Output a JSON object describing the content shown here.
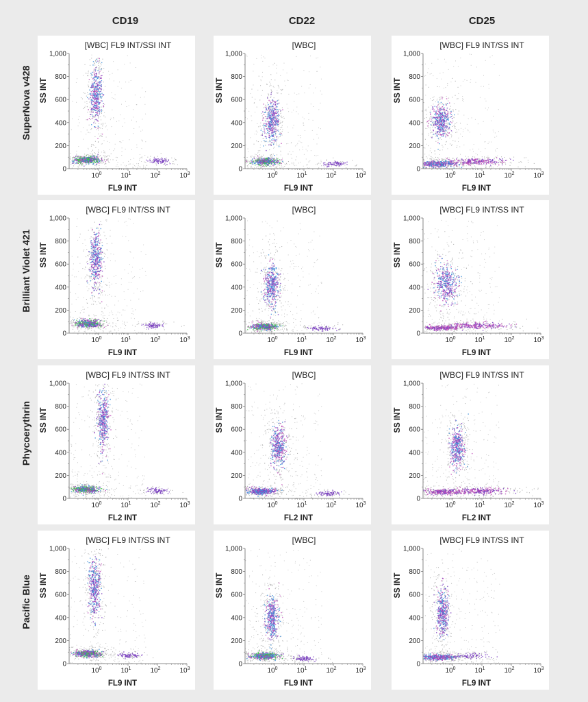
{
  "columns": [
    "CD19",
    "CD22",
    "CD25"
  ],
  "rows": [
    "SuperNova v428",
    "Brilliant Violet 421",
    "Phycoerythrin",
    "Pacific Blue"
  ],
  "colors": {
    "background": "#ebebeb",
    "panel": "#ffffff",
    "low_density": "#9a9a9a",
    "mid_density": "#7a3fc0",
    "high_density_magenta": "#c04bb8",
    "peak_blue": "#3f8fd8",
    "core_green": "#3fbf4a"
  },
  "chart_data": [
    {
      "type": "scatter",
      "row": "SuperNova v428",
      "column": "CD19",
      "title": "[WBC] FL9 INT/SSI INT",
      "xlabel": "FL9 INT",
      "ylabel": "SS INT",
      "x_scale": "log",
      "xlim": [
        0.1,
        1000
      ],
      "ylim": [
        0,
        1000
      ],
      "yticks": [
        "0",
        "200",
        "400",
        "600",
        "800",
        "1,000"
      ],
      "xticks": [
        {
          "base": "10",
          "exp": "0"
        },
        {
          "base": "10",
          "exp": "1"
        },
        {
          "base": "10",
          "exp": "2"
        },
        {
          "base": "10",
          "exp": "3"
        }
      ],
      "populations": [
        {
          "x_center": 0.4,
          "y_center": 80,
          "x_spread_decades": 0.22,
          "y_spread": 14,
          "density": "very-high"
        },
        {
          "x_center": 0.8,
          "y_center": 650,
          "x_spread_decades": 0.1,
          "y_spread": 120,
          "density": "high"
        },
        {
          "x_center": 120,
          "y_center": 70,
          "x_spread_decades": 0.18,
          "y_spread": 12,
          "density": "low"
        }
      ]
    },
    {
      "type": "scatter",
      "row": "SuperNova v428",
      "column": "CD22",
      "title": "[WBC]",
      "xlabel": "FL9 INT",
      "ylabel": "SS INT",
      "x_scale": "log",
      "xlim": [
        0.1,
        1000
      ],
      "ylim": [
        0,
        1000
      ],
      "yticks": [
        "0",
        "200",
        "400",
        "600",
        "800",
        "1,000"
      ],
      "xticks": [
        {
          "base": "10",
          "exp": "0"
        },
        {
          "base": "10",
          "exp": "1"
        },
        {
          "base": "10",
          "exp": "2"
        },
        {
          "base": "10",
          "exp": "3"
        }
      ],
      "populations": [
        {
          "x_center": 0.45,
          "y_center": 65,
          "x_spread_decades": 0.2,
          "y_spread": 13,
          "density": "very-high"
        },
        {
          "x_center": 0.8,
          "y_center": 410,
          "x_spread_decades": 0.12,
          "y_spread": 90,
          "density": "high"
        },
        {
          "x_center": 110,
          "y_center": 45,
          "x_spread_decades": 0.2,
          "y_spread": 10,
          "density": "low"
        }
      ]
    },
    {
      "type": "scatter",
      "row": "SuperNova v428",
      "column": "CD25",
      "title": "[WBC] FL9 INT/SS INT",
      "xlabel": "FL9 INT",
      "ylabel": "SS INT",
      "x_scale": "log",
      "xlim": [
        0.1,
        1000
      ],
      "ylim": [
        0,
        1000
      ],
      "yticks": [
        "0",
        "200",
        "400",
        "600",
        "800",
        "1,000"
      ],
      "xticks": [
        {
          "base": "10",
          "exp": "0"
        },
        {
          "base": "10",
          "exp": "1"
        },
        {
          "base": "10",
          "exp": "2"
        },
        {
          "base": "10",
          "exp": "3"
        }
      ],
      "populations": [
        {
          "x_center": 0.3,
          "y_center": 45,
          "x_spread_decades": 0.35,
          "y_spread": 12,
          "density": "high"
        },
        {
          "x_center": 0.4,
          "y_center": 420,
          "x_spread_decades": 0.15,
          "y_spread": 70,
          "density": "high"
        },
        {
          "x_center": 6,
          "y_center": 65,
          "x_spread_decades": 0.5,
          "y_spread": 14,
          "density": "medium"
        }
      ]
    },
    {
      "type": "scatter",
      "row": "Brilliant Violet 421",
      "column": "CD19",
      "title": "[WBC] FL9 INT/SS INT",
      "xlabel": "FL9 INT",
      "ylabel": "SS INT",
      "x_scale": "log",
      "xlim": [
        0.1,
        1000
      ],
      "ylim": [
        0,
        1000
      ],
      "yticks": [
        "0",
        "200",
        "400",
        "600",
        "800",
        "1,000"
      ],
      "xticks": [
        {
          "base": "10",
          "exp": "0"
        },
        {
          "base": "10",
          "exp": "1"
        },
        {
          "base": "10",
          "exp": "2"
        },
        {
          "base": "10",
          "exp": "3"
        }
      ],
      "populations": [
        {
          "x_center": 0.45,
          "y_center": 85,
          "x_spread_decades": 0.2,
          "y_spread": 14,
          "density": "very-high"
        },
        {
          "x_center": 0.8,
          "y_center": 650,
          "x_spread_decades": 0.1,
          "y_spread": 120,
          "density": "high"
        },
        {
          "x_center": 70,
          "y_center": 70,
          "x_spread_decades": 0.18,
          "y_spread": 12,
          "density": "low"
        }
      ]
    },
    {
      "type": "scatter",
      "row": "Brilliant Violet 421",
      "column": "CD22",
      "title": "[WBC]",
      "xlabel": "FL9 INT",
      "ylabel": "SS INT",
      "x_scale": "log",
      "xlim": [
        0.1,
        1000
      ],
      "ylim": [
        0,
        1000
      ],
      "yticks": [
        "0",
        "200",
        "400",
        "600",
        "800",
        "1,000"
      ],
      "xticks": [
        {
          "base": "10",
          "exp": "0"
        },
        {
          "base": "10",
          "exp": "1"
        },
        {
          "base": "10",
          "exp": "2"
        },
        {
          "base": "10",
          "exp": "3"
        }
      ],
      "populations": [
        {
          "x_center": 0.45,
          "y_center": 60,
          "x_spread_decades": 0.2,
          "y_spread": 13,
          "density": "very-high"
        },
        {
          "x_center": 0.8,
          "y_center": 420,
          "x_spread_decades": 0.12,
          "y_spread": 90,
          "density": "high"
        },
        {
          "x_center": 40,
          "y_center": 45,
          "x_spread_decades": 0.2,
          "y_spread": 10,
          "density": "low"
        }
      ]
    },
    {
      "type": "scatter",
      "row": "Brilliant Violet 421",
      "column": "CD25",
      "title": "[WBC] FL9 INT/SS INT",
      "xlabel": "FL9 INT",
      "ylabel": "SS INT",
      "x_scale": "log",
      "xlim": [
        0.1,
        1000
      ],
      "ylim": [
        0,
        1000
      ],
      "yticks": [
        "0",
        "200",
        "400",
        "600",
        "800",
        "1,000"
      ],
      "xticks": [
        {
          "base": "10",
          "exp": "0"
        },
        {
          "base": "10",
          "exp": "1"
        },
        {
          "base": "10",
          "exp": "2"
        },
        {
          "base": "10",
          "exp": "3"
        }
      ],
      "populations": [
        {
          "x_center": 0.4,
          "y_center": 50,
          "x_spread_decades": 0.3,
          "y_spread": 10,
          "density": "medium"
        },
        {
          "x_center": 0.6,
          "y_center": 430,
          "x_spread_decades": 0.2,
          "y_spread": 80,
          "density": "high"
        },
        {
          "x_center": 6,
          "y_center": 70,
          "x_spread_decades": 0.5,
          "y_spread": 14,
          "density": "medium"
        }
      ]
    },
    {
      "type": "scatter",
      "row": "Phycoerythrin",
      "column": "CD19",
      "title": "[WBC] FL9 INT/SS INT",
      "xlabel": "FL2 INT",
      "ylabel": "SS INT",
      "x_scale": "log",
      "xlim": [
        0.1,
        1000
      ],
      "ylim": [
        0,
        1000
      ],
      "yticks": [
        "0",
        "200",
        "400",
        "600",
        "800",
        "1,000"
      ],
      "xticks": [
        {
          "base": "10",
          "exp": "0"
        },
        {
          "base": "10",
          "exp": "1"
        },
        {
          "base": "10",
          "exp": "2"
        },
        {
          "base": "10",
          "exp": "3"
        }
      ],
      "populations": [
        {
          "x_center": 0.35,
          "y_center": 80,
          "x_spread_decades": 0.22,
          "y_spread": 14,
          "density": "very-high"
        },
        {
          "x_center": 1.4,
          "y_center": 680,
          "x_spread_decades": 0.1,
          "y_spread": 130,
          "density": "high"
        },
        {
          "x_center": 90,
          "y_center": 70,
          "x_spread_decades": 0.18,
          "y_spread": 12,
          "density": "low"
        }
      ]
    },
    {
      "type": "scatter",
      "row": "Phycoerythrin",
      "column": "CD22",
      "title": "[WBC]",
      "xlabel": "FL2 INT",
      "ylabel": "SS INT",
      "x_scale": "log",
      "xlim": [
        0.1,
        1000
      ],
      "ylim": [
        0,
        1000
      ],
      "yticks": [
        "0",
        "200",
        "400",
        "600",
        "800",
        "1,000"
      ],
      "xticks": [
        {
          "base": "10",
          "exp": "0"
        },
        {
          "base": "10",
          "exp": "1"
        },
        {
          "base": "10",
          "exp": "2"
        },
        {
          "base": "10",
          "exp": "3"
        }
      ],
      "populations": [
        {
          "x_center": 0.35,
          "y_center": 65,
          "x_spread_decades": 0.25,
          "y_spread": 13,
          "density": "high"
        },
        {
          "x_center": 1.3,
          "y_center": 450,
          "x_spread_decades": 0.12,
          "y_spread": 90,
          "density": "high"
        },
        {
          "x_center": 70,
          "y_center": 45,
          "x_spread_decades": 0.2,
          "y_spread": 10,
          "density": "low"
        }
      ]
    },
    {
      "type": "scatter",
      "row": "Phycoerythrin",
      "column": "CD25",
      "title": "[WBC] FL9 INT/SS INT",
      "xlabel": "FL2 INT",
      "ylabel": "SS INT",
      "x_scale": "log",
      "xlim": [
        0.1,
        1000
      ],
      "ylim": [
        0,
        1000
      ],
      "yticks": [
        "0",
        "200",
        "400",
        "600",
        "800",
        "1,000"
      ],
      "xticks": [
        {
          "base": "10",
          "exp": "0"
        },
        {
          "base": "10",
          "exp": "1"
        },
        {
          "base": "10",
          "exp": "2"
        },
        {
          "base": "10",
          "exp": "3"
        }
      ],
      "populations": [
        {
          "x_center": 0.5,
          "y_center": 60,
          "x_spread_decades": 0.35,
          "y_spread": 12,
          "density": "medium"
        },
        {
          "x_center": 1.4,
          "y_center": 450,
          "x_spread_decades": 0.12,
          "y_spread": 90,
          "density": "high"
        },
        {
          "x_center": 8,
          "y_center": 70,
          "x_spread_decades": 0.45,
          "y_spread": 14,
          "density": "medium"
        }
      ]
    },
    {
      "type": "scatter",
      "row": "Pacific Blue",
      "column": "CD19",
      "title": "[WBC] FL9 INT/SS INT",
      "xlabel": "FL9 INT",
      "ylabel": "SS INT",
      "x_scale": "log",
      "xlim": [
        0.1,
        1000
      ],
      "ylim": [
        0,
        1000
      ],
      "yticks": [
        "0",
        "200",
        "400",
        "600",
        "800",
        "1,000"
      ],
      "xticks": [
        {
          "base": "10",
          "exp": "0"
        },
        {
          "base": "10",
          "exp": "1"
        },
        {
          "base": "10",
          "exp": "2"
        },
        {
          "base": "10",
          "exp": "3"
        }
      ],
      "populations": [
        {
          "x_center": 0.4,
          "y_center": 90,
          "x_spread_decades": 0.22,
          "y_spread": 14,
          "density": "very-high"
        },
        {
          "x_center": 0.7,
          "y_center": 650,
          "x_spread_decades": 0.1,
          "y_spread": 130,
          "density": "high"
        },
        {
          "x_center": 10,
          "y_center": 75,
          "x_spread_decades": 0.18,
          "y_spread": 12,
          "density": "low"
        }
      ]
    },
    {
      "type": "scatter",
      "row": "Pacific Blue",
      "column": "CD22",
      "title": "[WBC]",
      "xlabel": "FL9 INT",
      "ylabel": "SS INT",
      "x_scale": "log",
      "xlim": [
        0.1,
        1000
      ],
      "ylim": [
        0,
        1000
      ],
      "yticks": [
        "0",
        "200",
        "400",
        "600",
        "800",
        "1,000"
      ],
      "xticks": [
        {
          "base": "10",
          "exp": "0"
        },
        {
          "base": "10",
          "exp": "1"
        },
        {
          "base": "10",
          "exp": "2"
        },
        {
          "base": "10",
          "exp": "3"
        }
      ],
      "populations": [
        {
          "x_center": 0.45,
          "y_center": 70,
          "x_spread_decades": 0.2,
          "y_spread": 13,
          "density": "very-high"
        },
        {
          "x_center": 0.8,
          "y_center": 400,
          "x_spread_decades": 0.12,
          "y_spread": 90,
          "density": "high"
        },
        {
          "x_center": 10,
          "y_center": 45,
          "x_spread_decades": 0.2,
          "y_spread": 10,
          "density": "low"
        }
      ]
    },
    {
      "type": "scatter",
      "row": "Pacific Blue",
      "column": "CD25",
      "title": "[WBC] FL9 INT/SS INT",
      "xlabel": "FL9 INT",
      "ylabel": "SS INT",
      "x_scale": "log",
      "xlim": [
        0.1,
        1000
      ],
      "ylim": [
        0,
        1000
      ],
      "yticks": [
        "0",
        "200",
        "400",
        "600",
        "800",
        "1,000"
      ],
      "xticks": [
        {
          "base": "10",
          "exp": "0"
        },
        {
          "base": "10",
          "exp": "1"
        },
        {
          "base": "10",
          "exp": "2"
        },
        {
          "base": "10",
          "exp": "3"
        }
      ],
      "populations": [
        {
          "x_center": 0.3,
          "y_center": 60,
          "x_spread_decades": 0.3,
          "y_spread": 12,
          "density": "high"
        },
        {
          "x_center": 0.45,
          "y_center": 450,
          "x_spread_decades": 0.1,
          "y_spread": 100,
          "density": "high"
        },
        {
          "x_center": 4,
          "y_center": 70,
          "x_spread_decades": 0.3,
          "y_spread": 12,
          "density": "low"
        }
      ]
    }
  ]
}
